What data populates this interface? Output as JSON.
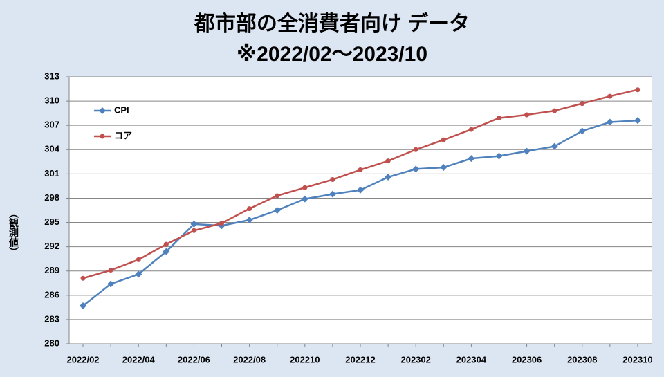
{
  "chart_data": {
    "type": "line",
    "title": "都市部の全消費者向け データ",
    "subtitle": "※2022/02～2023/10",
    "y_label": "（観測値）",
    "categories": [
      "2022/02",
      null,
      "2022/04",
      null,
      "2022/06",
      null,
      "2022/08",
      null,
      "202210",
      null,
      "202212",
      null,
      "202302",
      null,
      "202304",
      null,
      "202306",
      null,
      "202308",
      null,
      "202310"
    ],
    "series": [
      {
        "name": "CPI",
        "color": "#4f81bd",
        "marker": "diamond",
        "values": [
          284.7,
          287.4,
          288.6,
          291.4,
          294.8,
          294.6,
          295.3,
          296.5,
          297.9,
          298.5,
          299.0,
          300.6,
          301.6,
          301.8,
          302.9,
          303.2,
          303.8,
          304.4,
          306.3,
          307.4,
          307.6
        ]
      },
      {
        "name": "コア",
        "color": "#c0504d",
        "marker": "circle",
        "values": [
          288.1,
          289.1,
          290.4,
          292.3,
          294.0,
          294.9,
          296.7,
          298.3,
          299.3,
          300.3,
          301.5,
          302.6,
          304.0,
          305.2,
          306.5,
          307.9,
          308.3,
          308.8,
          309.7,
          310.6,
          311.4
        ]
      }
    ],
    "ylim": [
      280,
      313
    ],
    "yticks": [
      280,
      283,
      286,
      289,
      292,
      295,
      298,
      301,
      304,
      307,
      310,
      313
    ],
    "grid": true,
    "legend": "upper left"
  }
}
